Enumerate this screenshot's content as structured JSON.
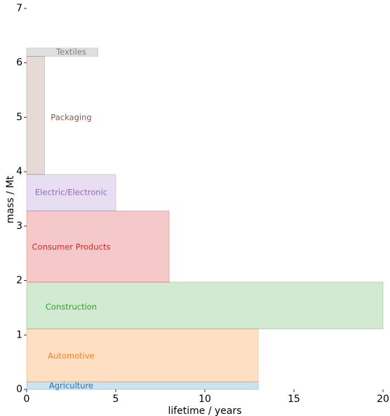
{
  "chart_data": {
    "type": "bar",
    "orientation": "stacked-horizontal-extent",
    "title": "",
    "xlabel": "lifetime / years",
    "ylabel": "mass / Mt",
    "xlim": [
      0,
      20
    ],
    "ylim": [
      0,
      7
    ],
    "xticks": [
      0,
      5,
      10,
      15,
      20
    ],
    "yticks": [
      0,
      1,
      2,
      3,
      4,
      5,
      6,
      7
    ],
    "grid": false,
    "legend": "none",
    "series": [
      {
        "name": "Agriculture",
        "lifetime": 13,
        "mass_bottom": 0.0,
        "mass": 0.14,
        "color": "#1f77b4",
        "fill_opacity": 0.22,
        "label_x": 2.5,
        "label_y": 0.07
      },
      {
        "name": "Automotive",
        "lifetime": 13,
        "mass_bottom": 0.14,
        "mass": 0.97,
        "color": "#ff7f0e",
        "fill_opacity": 0.25,
        "label_x": 2.5,
        "label_y": 0.62
      },
      {
        "name": "Construction",
        "lifetime": 20,
        "mass_bottom": 1.11,
        "mass": 0.86,
        "color": "#2ca02c",
        "fill_opacity": 0.22,
        "label_x": 2.5,
        "label_y": 1.52
      },
      {
        "name": "Consumer Products",
        "lifetime": 8,
        "mass_bottom": 1.97,
        "mass": 1.31,
        "color": "#d62728",
        "fill_opacity": 0.25,
        "label_x": 2.5,
        "label_y": 2.62
      },
      {
        "name": "Electric/Electronic",
        "lifetime": 5,
        "mass_bottom": 3.28,
        "mass": 0.67,
        "color": "#9467bd",
        "fill_opacity": 0.22,
        "label_x": 2.5,
        "label_y": 3.62
      },
      {
        "name": "Packaging",
        "lifetime": 1,
        "mass_bottom": 3.95,
        "mass": 2.17,
        "color": "#8c564b",
        "fill_opacity": 0.22,
        "label_x": 2.5,
        "label_y": 5.0
      },
      {
        "name": "Textiles",
        "lifetime": 4,
        "mass_bottom": 6.12,
        "mass": 0.15,
        "color": "#7f7f7f",
        "fill_opacity": 0.25,
        "label_x": 2.5,
        "label_y": 6.2
      }
    ]
  }
}
